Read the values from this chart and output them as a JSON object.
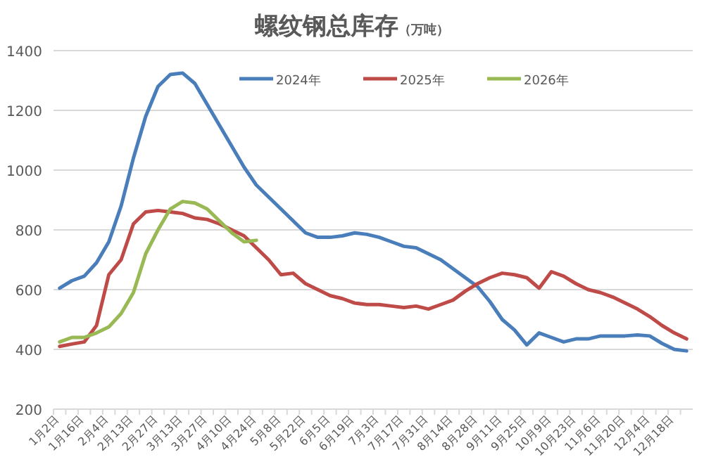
{
  "chart_data": {
    "type": "line",
    "title": "螺纹钢总库存",
    "subtitle": "（万吨）",
    "categories": [
      "1月2日",
      null,
      "1月16日",
      null,
      "2月4日",
      null,
      "2月13日",
      null,
      "2月27日",
      null,
      "3月13日",
      null,
      "3月27日",
      null,
      "4月10日",
      null,
      "4月24日",
      null,
      "5月8日",
      null,
      "5月22日",
      null,
      "6月5日",
      null,
      "6月19日",
      null,
      "7月3日",
      null,
      "7月17日",
      null,
      "7月31日",
      null,
      "8月14日",
      null,
      "8月28日",
      null,
      "9月11日",
      null,
      "9月25日",
      null,
      "10月9日",
      null,
      "10月23日",
      null,
      "11月6日",
      null,
      "11月20日",
      null,
      "12月4日",
      null,
      "12月18日",
      null
    ],
    "series": [
      {
        "name": "2024年",
        "color": "#4a7ebb",
        "values": [
          605,
          630,
          645,
          690,
          760,
          880,
          1040,
          1180,
          1280,
          1320,
          1325,
          1290,
          1220,
          1150,
          1080,
          1010,
          950,
          910,
          870,
          830,
          790,
          775,
          775,
          780,
          790,
          785,
          775,
          760,
          745,
          740,
          720,
          700,
          670,
          640,
          610,
          560,
          500,
          465,
          415,
          455,
          440,
          425,
          435,
          435,
          445,
          445,
          445,
          448,
          445,
          420,
          400,
          395
        ]
      },
      {
        "name": "2025年",
        "color": "#be4b48",
        "values": [
          410,
          418,
          425,
          480,
          650,
          700,
          820,
          860,
          865,
          860,
          855,
          840,
          835,
          820,
          800,
          780,
          740,
          700,
          650,
          655,
          620,
          600,
          580,
          570,
          555,
          550,
          550,
          545,
          540,
          545,
          535,
          550,
          565,
          595,
          620,
          640,
          655,
          650,
          640,
          605,
          660,
          645,
          620,
          600,
          590,
          575,
          555,
          535,
          510,
          480,
          455,
          435
        ]
      },
      {
        "name": "2026年",
        "color": "#98b954",
        "values": [
          425,
          440,
          440,
          455,
          475,
          520,
          590,
          720,
          800,
          870,
          895,
          890,
          870,
          830,
          790,
          760,
          765,
          null,
          null,
          null,
          null,
          null,
          null,
          null,
          null,
          null,
          null,
          null,
          null,
          null,
          null,
          null,
          null,
          null,
          null,
          null,
          null,
          null,
          null,
          null,
          null,
          null,
          null,
          null,
          null,
          null,
          null,
          null,
          null,
          null,
          null,
          null
        ]
      }
    ],
    "ylim": [
      200,
      1400
    ],
    "yticks": [
      200,
      400,
      600,
      800,
      1000,
      1200,
      1400
    ],
    "grid": "y",
    "legend": "top",
    "marker": "none",
    "line_style": "solid"
  }
}
